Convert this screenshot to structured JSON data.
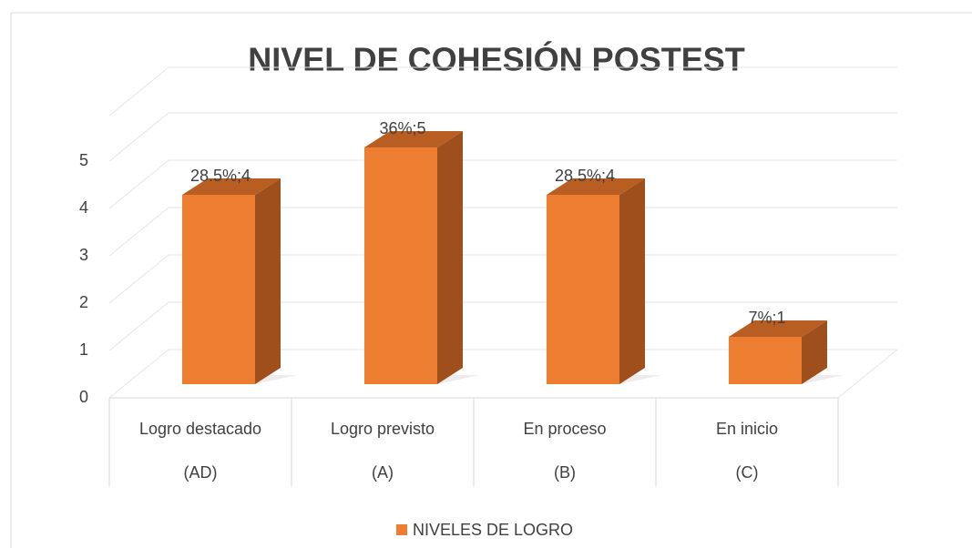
{
  "chart_data": {
    "type": "bar3d",
    "title": "NIVEL DE COHESIÓN POSTEST",
    "categories": [
      [
        "Logro destacado",
        "(AD)"
      ],
      [
        "Logro previsto",
        "(A)"
      ],
      [
        "En proceso",
        "(B)"
      ],
      [
        "En inicio",
        "(C)"
      ]
    ],
    "series": [
      {
        "name": "NIVELES DE LOGRO",
        "color": "#ed7d31",
        "values": [
          4,
          5,
          4,
          1
        ],
        "value_labels": [
          "28.5%;4",
          "36%;5",
          "28.5%;4",
          "7%;1"
        ]
      }
    ],
    "ylim": [
      0,
      6
    ],
    "yticks": [
      0,
      1,
      2,
      3,
      4,
      5
    ],
    "grid": true,
    "legend": "bottom"
  }
}
